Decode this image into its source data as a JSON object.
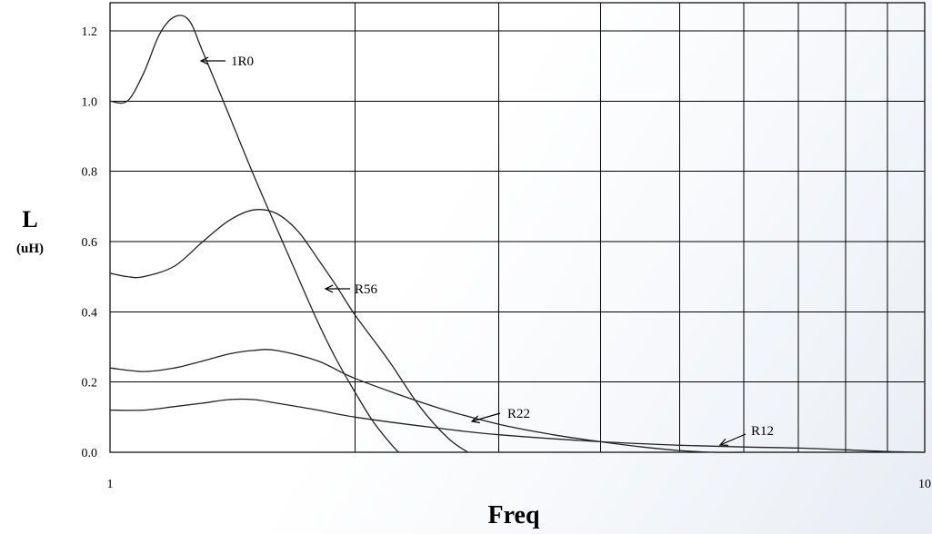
{
  "chart_data": {
    "type": "line",
    "xlabel": "Freq",
    "ylabel": "L",
    "ylabel_unit": "(uH)",
    "x_scale": "log",
    "xlim": [
      1,
      10
    ],
    "ylim": [
      0,
      1.28
    ],
    "x_tick_labels": [
      "1",
      "10"
    ],
    "y_ticks": [
      0.0,
      0.2,
      0.4,
      0.6,
      0.8,
      1.0,
      1.2
    ],
    "y_tick_labels": [
      "0.0",
      "0.2",
      "0.4",
      "0.6",
      "0.8",
      "1.0",
      "1.2"
    ],
    "grid": true,
    "legend": "none",
    "series": [
      {
        "name": "1R0",
        "x": [
          1.0,
          1.05,
          1.1,
          1.15,
          1.2,
          1.25,
          1.3,
          1.4,
          1.5,
          1.6,
          1.7,
          1.8,
          1.9,
          2.0,
          2.1,
          2.2,
          2.26
        ],
        "y": [
          1.0,
          1.0,
          1.08,
          1.19,
          1.24,
          1.23,
          1.14,
          0.96,
          0.79,
          0.64,
          0.5,
          0.37,
          0.26,
          0.17,
          0.09,
          0.03,
          0.0
        ]
      },
      {
        "name": "R56",
        "x": [
          1.0,
          1.05,
          1.1,
          1.2,
          1.3,
          1.4,
          1.5,
          1.6,
          1.7,
          1.8,
          1.9,
          2.0,
          2.2,
          2.4,
          2.6,
          2.75
        ],
        "y": [
          0.51,
          0.5,
          0.5,
          0.53,
          0.6,
          0.66,
          0.69,
          0.68,
          0.63,
          0.55,
          0.47,
          0.39,
          0.26,
          0.13,
          0.04,
          0.0
        ]
      },
      {
        "name": "R22",
        "x": [
          1.0,
          1.1,
          1.2,
          1.3,
          1.4,
          1.5,
          1.6,
          1.8,
          2.0,
          2.5,
          3.0,
          3.5,
          4.0,
          4.5,
          5.0,
          5.5,
          6.0
        ],
        "y": [
          0.24,
          0.23,
          0.24,
          0.26,
          0.28,
          0.29,
          0.29,
          0.26,
          0.21,
          0.13,
          0.08,
          0.05,
          0.03,
          0.015,
          0.005,
          0.0,
          0.0
        ]
      },
      {
        "name": "R12",
        "x": [
          1.0,
          1.1,
          1.2,
          1.3,
          1.4,
          1.5,
          1.6,
          1.8,
          2.0,
          2.5,
          3.0,
          4.0,
          5.0,
          6.0,
          7.0,
          8.0,
          9.0,
          10.0
        ],
        "y": [
          0.12,
          0.12,
          0.13,
          0.14,
          0.15,
          0.15,
          0.14,
          0.12,
          0.1,
          0.07,
          0.05,
          0.03,
          0.02,
          0.015,
          0.012,
          0.007,
          0.002,
          0.0
        ]
      }
    ],
    "annotations": [
      {
        "text": "1R0",
        "series": "1R0"
      },
      {
        "text": "R56",
        "series": "R56"
      },
      {
        "text": "R22",
        "series": "R22"
      },
      {
        "text": "R12",
        "series": "R12"
      }
    ],
    "colors": {
      "line": "#222222",
      "grid": "#000000"
    }
  }
}
